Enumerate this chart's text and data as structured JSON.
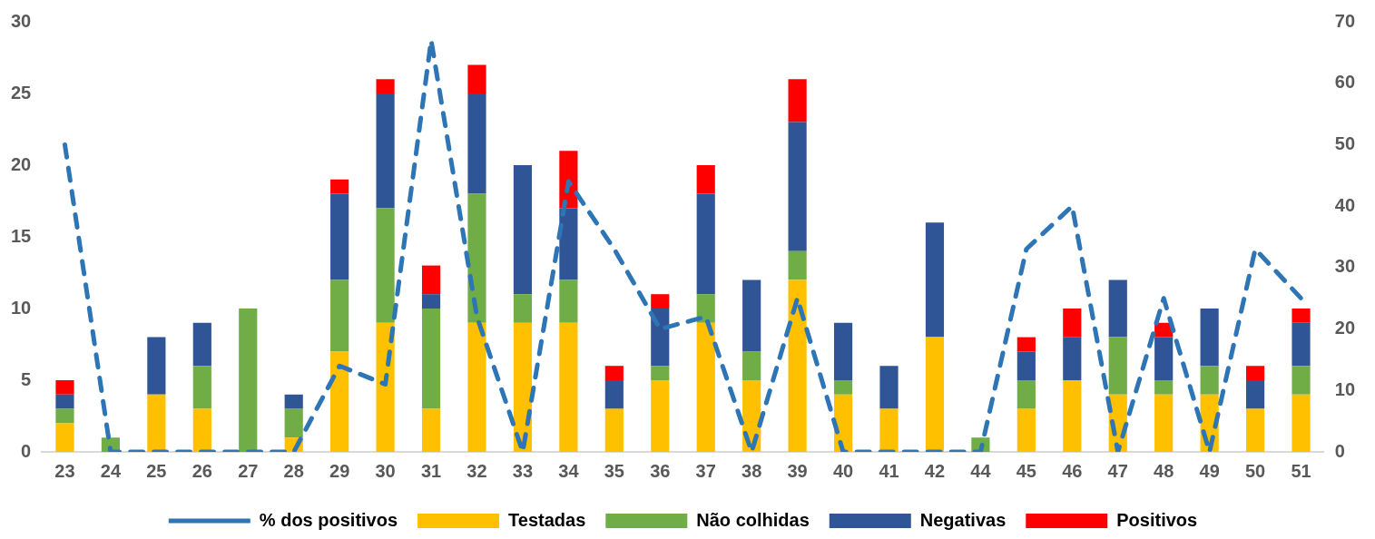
{
  "chart_data": {
    "type": "bar",
    "stacked": true,
    "categories": [
      "23",
      "24",
      "25",
      "26",
      "27",
      "28",
      "29",
      "30",
      "31",
      "32",
      "33",
      "34",
      "35",
      "36",
      "37",
      "38",
      "39",
      "40",
      "41",
      "42",
      "44",
      "45",
      "46",
      "47",
      "48",
      "49",
      "50",
      "51"
    ],
    "series": [
      {
        "name": "Testadas",
        "color": "#ffc000",
        "values": [
          2,
          0,
          4,
          3,
          0,
          1,
          7,
          9,
          3,
          9,
          9,
          9,
          3,
          5,
          9,
          5,
          12,
          4,
          3,
          8,
          0,
          3,
          5,
          4,
          4,
          4,
          3,
          4
        ]
      },
      {
        "name": "Não colhidas",
        "color": "#70ad47",
        "values": [
          1,
          1,
          0,
          3,
          10,
          2,
          5,
          8,
          7,
          9,
          2,
          3,
          0,
          1,
          2,
          2,
          2,
          1,
          0,
          0,
          1,
          2,
          0,
          4,
          1,
          2,
          0,
          2
        ]
      },
      {
        "name": "Negativas",
        "color": "#2f5597",
        "values": [
          1,
          0,
          4,
          3,
          0,
          1,
          6,
          8,
          1,
          7,
          9,
          5,
          2,
          4,
          7,
          5,
          9,
          4,
          3,
          8,
          0,
          2,
          3,
          4,
          3,
          4,
          2,
          3
        ]
      },
      {
        "name": "Positivos",
        "color": "#ff0000",
        "values": [
          1,
          0,
          0,
          0,
          0,
          0,
          1,
          1,
          2,
          2,
          0,
          4,
          1,
          1,
          2,
          0,
          3,
          0,
          0,
          0,
          0,
          1,
          2,
          0,
          1,
          0,
          1,
          1
        ]
      },
      {
        "name": "% dos positivos",
        "type": "line",
        "axis": "y2",
        "line_style": "dashed",
        "marker": "none",
        "color": "#2e75b6",
        "values": [
          50,
          0,
          0,
          0,
          0,
          0,
          14,
          11,
          67,
          22,
          0,
          44,
          33,
          20,
          22,
          0,
          25,
          0,
          0,
          0,
          0,
          33,
          40,
          0,
          25,
          0,
          33,
          25
        ]
      }
    ],
    "ylim": [
      0,
      30
    ],
    "yticks": [
      0,
      5,
      10,
      15,
      20,
      25,
      30
    ],
    "y2lim": [
      0,
      70
    ],
    "y2ticks": [
      0,
      10,
      20,
      30,
      40,
      50,
      60,
      70
    ],
    "grid": false,
    "legend": "bottom"
  }
}
